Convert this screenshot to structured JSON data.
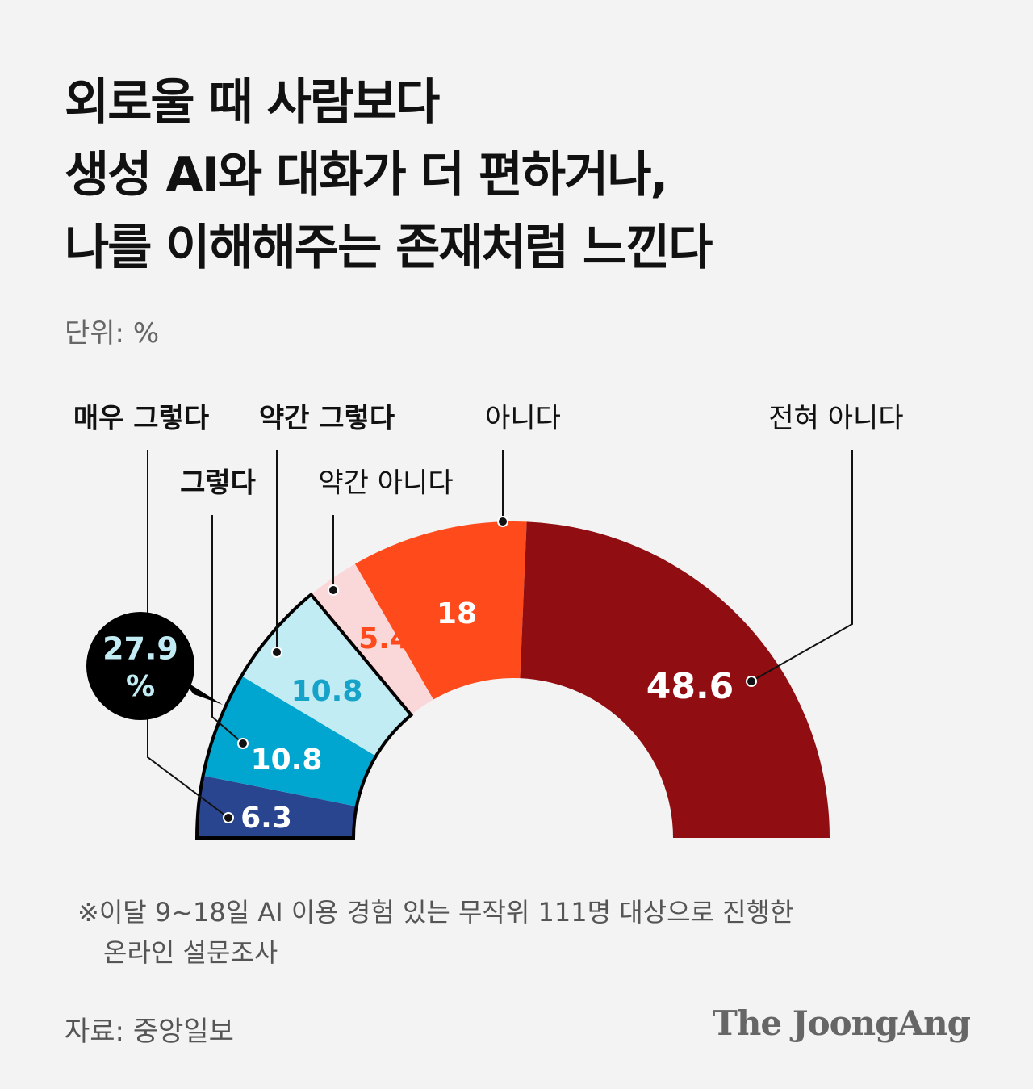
{
  "title_lines": [
    "외로울 때 사람보다",
    "생성 AI와 대화가 더 편하거나,",
    "나를 이해해주는 존재처럼 느낀다"
  ],
  "unit": "단위: %",
  "note_lines": [
    "※이달 9~18일 AI 이용 경험 있는 무작위 111명 대상으로 진행한",
    "온라인 설문조사"
  ],
  "source": "자료: 중앙일보",
  "brand": "The JoongAng",
  "chart_data": {
    "type": "pie",
    "shape": "half-donut",
    "categories": [
      "매우 그렇다",
      "그렇다",
      "약간 그렇다",
      "약간 아니다",
      "아니다",
      "전혀 아니다"
    ],
    "values": [
      6.3,
      10.8,
      10.8,
      5.4,
      18,
      48.6
    ],
    "value_labels": [
      "6.3",
      "10.8",
      "10.8",
      "5.4",
      "18",
      "48.6"
    ],
    "colors": [
      "#2a4590",
      "#00a6cf",
      "#c1ecf3",
      "#fad7d9",
      "#ff4b1c",
      "#900d11"
    ],
    "label_colors": [
      "#ffffff",
      "#ffffff",
      "#16a3c9",
      "#ff4b1c",
      "#ffffff",
      "#ffffff"
    ],
    "category_label_bold": [
      true,
      true,
      true,
      false,
      false,
      false
    ],
    "highlight": {
      "value": "27.9",
      "unit": "%",
      "covers": [
        "매우 그렇다",
        "그렇다",
        "약간 그렇다"
      ]
    }
  }
}
